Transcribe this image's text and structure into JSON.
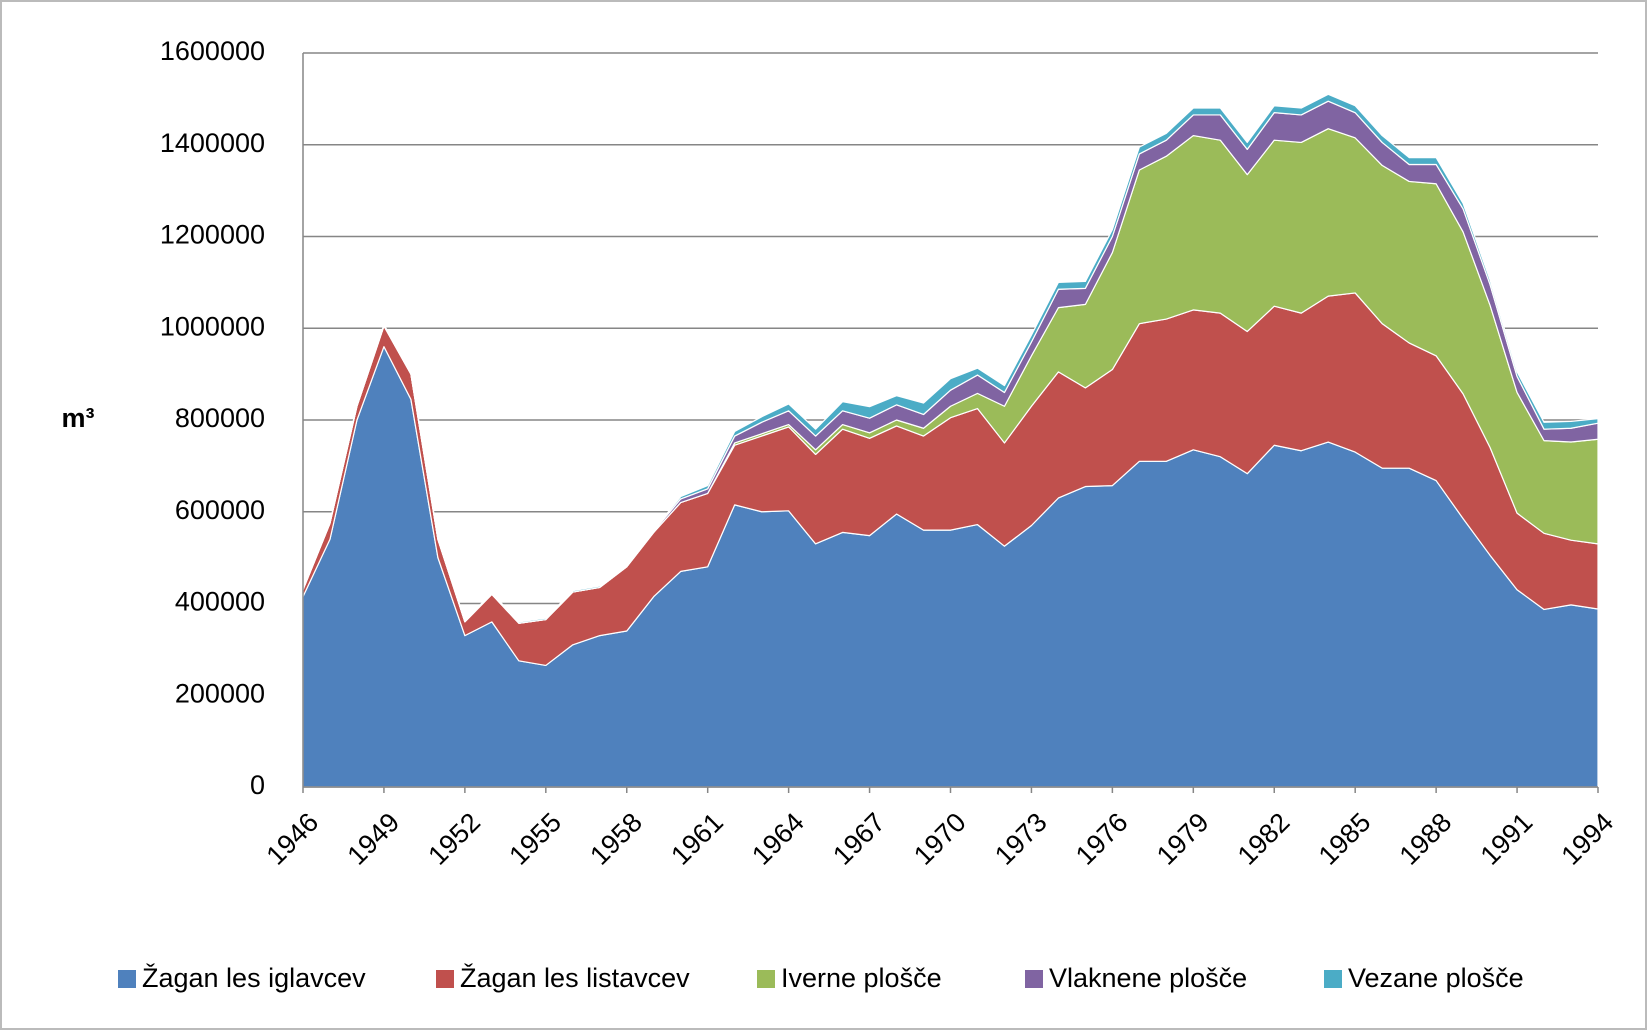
{
  "chart_data": {
    "type": "stacked_area",
    "y_label": "m³",
    "x": [
      1946,
      1947,
      1948,
      1949,
      1950,
      1951,
      1952,
      1953,
      1954,
      1955,
      1956,
      1957,
      1958,
      1959,
      1960,
      1961,
      1962,
      1963,
      1964,
      1965,
      1966,
      1967,
      1968,
      1969,
      1970,
      1971,
      1972,
      1973,
      1974,
      1975,
      1976,
      1977,
      1978,
      1979,
      1980,
      1981,
      1982,
      1983,
      1984,
      1985,
      1986,
      1987,
      1988,
      1989,
      1990,
      1991,
      1992,
      1993,
      1994
    ],
    "xlim": [
      1946,
      1994
    ],
    "xticks": [
      1946,
      1949,
      1952,
      1955,
      1958,
      1961,
      1964,
      1967,
      1970,
      1973,
      1976,
      1979,
      1982,
      1985,
      1988,
      1991,
      1994
    ],
    "ylim": [
      0,
      1600000
    ],
    "yticks": [
      0,
      200000,
      400000,
      600000,
      800000,
      1000000,
      1200000,
      1400000,
      1600000
    ],
    "grid": true,
    "legend": "bottom",
    "series": [
      {
        "name": "Žagan les iglavcev",
        "color": "#4f81bd",
        "values": [
          415000,
          540000,
          800000,
          960000,
          845000,
          500000,
          330000,
          360000,
          275000,
          265000,
          310000,
          330000,
          340000,
          415000,
          470000,
          480000,
          615000,
          600000,
          602000,
          530000,
          555000,
          548000,
          595000,
          560000,
          560000,
          572000,
          525000,
          570000,
          630000,
          655000,
          657000,
          710000,
          710000,
          735000,
          720000,
          683000,
          745000,
          733000,
          752000,
          730000,
          695000,
          695000,
          668000,
          585000,
          505000,
          430000,
          387000,
          397000,
          388000
        ]
      },
      {
        "name": "Žagan les listavcev",
        "color": "#c0504d",
        "values": [
          15000,
          35000,
          30000,
          45000,
          55000,
          40000,
          30000,
          60000,
          82000,
          100000,
          115000,
          105000,
          140000,
          140000,
          150000,
          160000,
          130000,
          165000,
          183000,
          195000,
          225000,
          212000,
          192000,
          205000,
          245000,
          253000,
          225000,
          260000,
          275000,
          215000,
          253000,
          300000,
          310000,
          305000,
          313000,
          310000,
          303000,
          300000,
          318000,
          347000,
          315000,
          273000,
          272000,
          272000,
          235000,
          167000,
          166000,
          141000,
          142000
        ]
      },
      {
        "name": "Iverne plošče",
        "color": "#9bbb59",
        "values": [
          0,
          0,
          0,
          0,
          0,
          0,
          0,
          0,
          0,
          0,
          0,
          0,
          0,
          0,
          0,
          0,
          5000,
          5000,
          5000,
          10000,
          10000,
          12000,
          13000,
          17000,
          25000,
          33000,
          80000,
          110000,
          140000,
          182000,
          255000,
          335000,
          355000,
          380000,
          377000,
          342000,
          362000,
          372000,
          365000,
          338000,
          345000,
          352000,
          375000,
          353000,
          310000,
          263000,
          202000,
          214000,
          228000
        ]
      },
      {
        "name": "Vlaknene plošče",
        "color": "#8064a2",
        "values": [
          0,
          0,
          0,
          0,
          0,
          0,
          0,
          0,
          0,
          0,
          0,
          0,
          0,
          3000,
          8000,
          10000,
          15000,
          25000,
          30000,
          30000,
          30000,
          32000,
          33000,
          30000,
          35000,
          40000,
          30000,
          30000,
          40000,
          35000,
          35000,
          35000,
          35000,
          45000,
          55000,
          55000,
          60000,
          60000,
          60000,
          55000,
          50000,
          37000,
          42000,
          50000,
          45000,
          35000,
          25000,
          30000,
          35000
        ]
      },
      {
        "name": "Vezane plošče",
        "color": "#4bacc6",
        "values": [
          3000,
          3000,
          3000,
          3000,
          3000,
          3000,
          3000,
          3000,
          3000,
          3000,
          3000,
          3000,
          3000,
          3000,
          5000,
          7000,
          10000,
          12000,
          15000,
          15000,
          20000,
          25000,
          20000,
          25000,
          25000,
          15000,
          15000,
          15000,
          15000,
          15000,
          15000,
          15000,
          15000,
          15000,
          15000,
          15000,
          15000,
          15000,
          15000,
          15000,
          15000,
          15000,
          15000,
          12000,
          10000,
          10000,
          15000,
          15000,
          10000
        ]
      }
    ]
  }
}
